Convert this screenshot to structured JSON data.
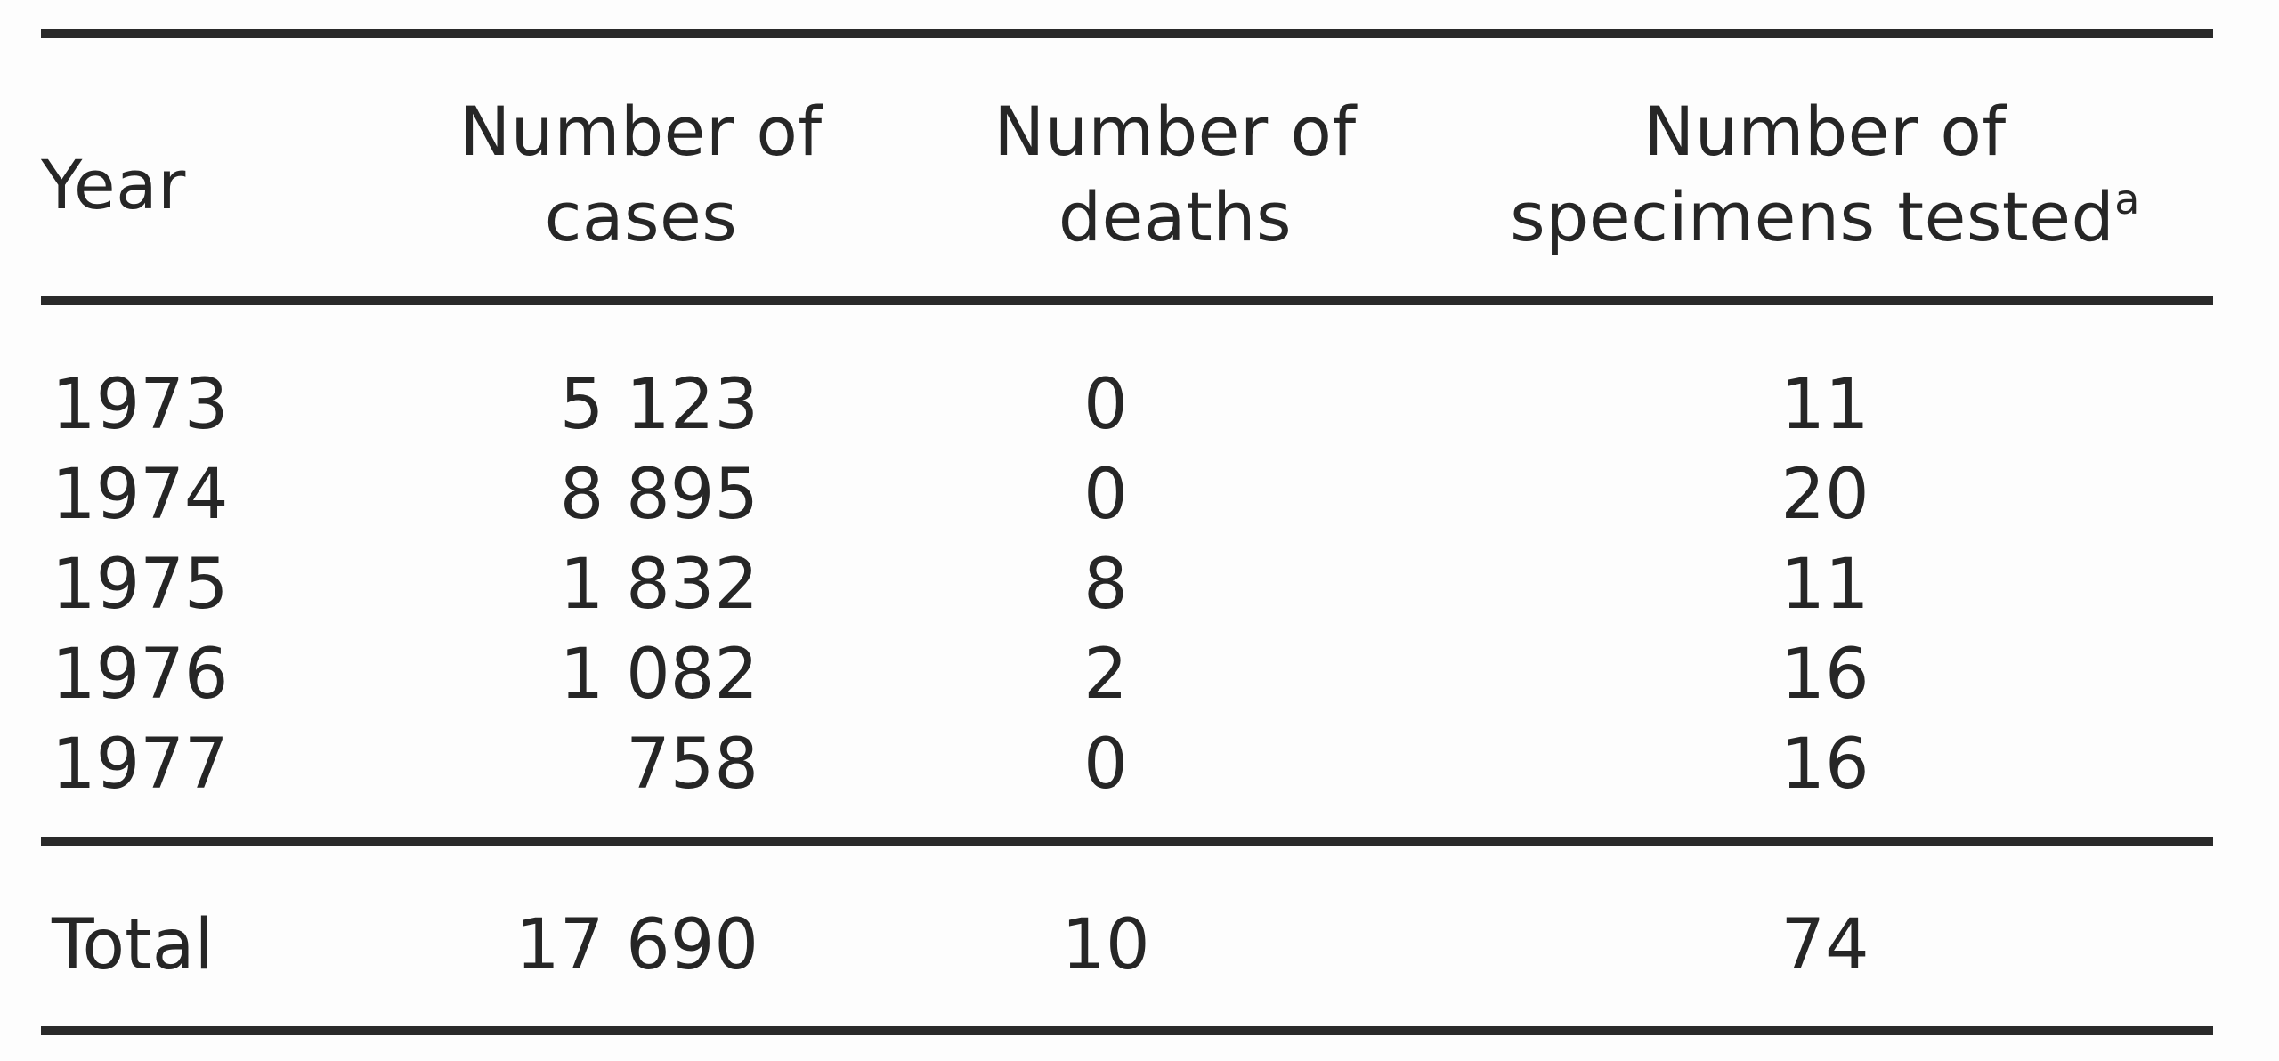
{
  "table": {
    "headers": {
      "year": "Year",
      "cases_line1": "Number of",
      "cases_line2": "cases",
      "deaths_line1": "Number of",
      "deaths_line2": "deaths",
      "specimens_line1": "Number of",
      "specimens_line2": "specimens tested",
      "specimens_footnote_mark": "a"
    },
    "rows": [
      {
        "year": "1973",
        "cases": "5 123",
        "deaths": "0",
        "specimens": "11"
      },
      {
        "year": "1974",
        "cases": "8 895",
        "deaths": "0",
        "specimens": "20"
      },
      {
        "year": "1975",
        "cases": "1 832",
        "deaths": "8",
        "specimens": "11"
      },
      {
        "year": "1976",
        "cases": "1 082",
        "deaths": "2",
        "specimens": "16"
      },
      {
        "year": "1977",
        "cases": "758",
        "deaths": "0",
        "specimens": "16"
      }
    ],
    "total": {
      "label": "Total",
      "cases": "17 690",
      "deaths": "10",
      "specimens": "74"
    }
  }
}
